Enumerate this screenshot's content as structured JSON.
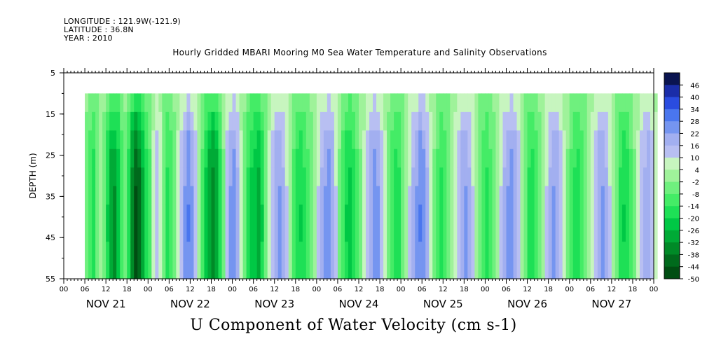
{
  "header": {
    "longitude": "LONGITUDE : 121.9W(-121.9)",
    "latitude": "LATITUDE : 36.8N",
    "year": "YEAR : 2010"
  },
  "chart_data": {
    "type": "heatmap",
    "title": "Hourly Gridded MBARI Mooring M0 Sea Water Temperature and Salinity Observations",
    "bottom_title": "U Component of Water Velocity (cm s-1)",
    "ylabel": "DEPTH (m)",
    "ylim": [
      55,
      5
    ],
    "y_ticks": [
      "5",
      "15",
      "25",
      "35",
      "45",
      "55"
    ],
    "x_hour_ticks": [
      "00",
      "06",
      "12",
      "18",
      "00",
      "06",
      "12",
      "18",
      "00",
      "06",
      "12",
      "18",
      "00",
      "06",
      "12",
      "18",
      "00",
      "06",
      "12",
      "18",
      "00",
      "06",
      "12",
      "18",
      "00",
      "06",
      "12",
      "18",
      "00"
    ],
    "x_day_labels": [
      "NOV 21",
      "NOV 22",
      "NOV 23",
      "NOV 24",
      "NOV 25",
      "NOV 26",
      "NOV 27"
    ],
    "data_depth_range": [
      10,
      55
    ],
    "data_time_start_hour": 6,
    "colorbar": {
      "labels": [
        "46",
        "40",
        "34",
        "28",
        "22",
        "16",
        "10",
        "4",
        "-2",
        "-8",
        "-14",
        "-20",
        "-26",
        "-32",
        "-38",
        "-44",
        "-50"
      ],
      "range": [
        -50,
        52
      ]
    },
    "u_velocity_by_hour": [
      -4,
      -10,
      -14,
      -6,
      2,
      -4,
      -16,
      -24,
      -26,
      -20,
      -10,
      -4,
      -14,
      -28,
      -36,
      -32,
      -22,
      -14,
      -8,
      4,
      10,
      6,
      -6,
      -12,
      -10,
      -4,
      4,
      12,
      18,
      22,
      18,
      10,
      2,
      -8,
      -18,
      -24,
      -28,
      -24,
      -14,
      -2,
      10,
      18,
      20,
      14,
      4,
      -4,
      -12,
      -18,
      -20,
      -22,
      -16,
      -6,
      4,
      10,
      16,
      18,
      14,
      8,
      0,
      -8,
      -14,
      -16,
      -12,
      -8,
      -4,
      2,
      8,
      14,
      18,
      20,
      16,
      8,
      -2,
      -10,
      -16,
      -18,
      -14,
      -8,
      -2,
      4,
      10,
      16,
      20,
      18,
      12,
      4,
      -4,
      -10,
      -14,
      -12,
      -6,
      2,
      8,
      14,
      18,
      22,
      20,
      14,
      6,
      -2,
      -8,
      -12,
      -10,
      -6,
      0,
      6,
      12,
      16,
      18,
      14,
      8,
      0,
      -6,
      -10,
      -12,
      -8,
      -4,
      2,
      8,
      14,
      18,
      20,
      16,
      10,
      2,
      -6,
      -12,
      -14,
      -10,
      -4,
      2,
      8,
      14,
      18,
      16,
      10,
      4,
      -2,
      -8,
      -12,
      -14,
      -10,
      -6,
      0,
      6,
      12,
      16,
      18,
      14,
      8,
      2,
      -6,
      -12,
      -16,
      -14,
      -8,
      -2,
      4,
      10,
      14,
      16,
      12,
      6
    ],
    "depth_weights": [
      0.5,
      0.75,
      1.0,
      1.1,
      1.2,
      1.25,
      1.3,
      1.3,
      1.25,
      1.25
    ]
  },
  "colors": {
    "palette": [
      "#0a1450",
      "#1a2da8",
      "#2a4ce0",
      "#4a76ee",
      "#7595f0",
      "#a2aff0",
      "#b8bff2",
      "#c7f5bf",
      "#9ff29a",
      "#6ff07e",
      "#44ec66",
      "#1ee056",
      "#00c845",
      "#00aa36",
      "#008a27",
      "#006a1c",
      "#004d12"
    ]
  }
}
